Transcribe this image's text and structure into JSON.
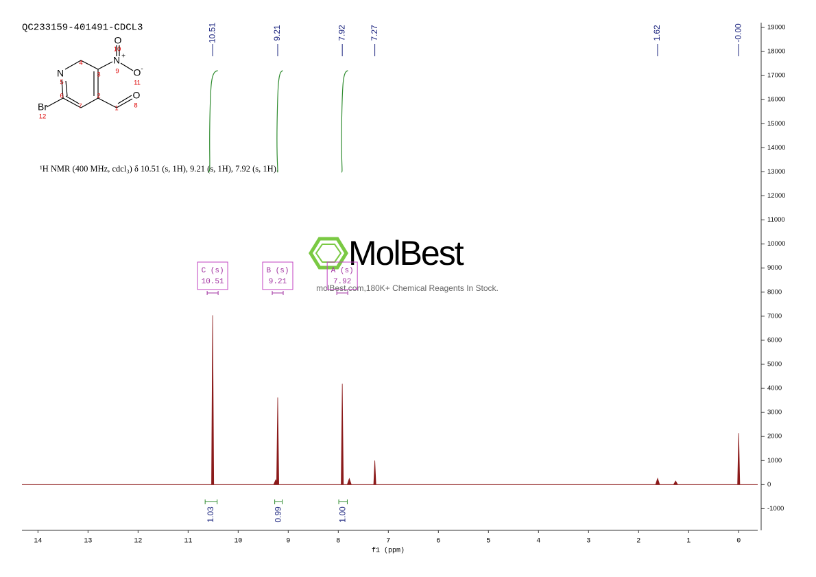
{
  "chart_data": {
    "type": "nmr",
    "title": "QC233159-401491-CDCL3",
    "description": "¹H NMR (400 MHz, cdcl₃) δ 10.51 (s, 1H), 9.21 (s, 1H), 7.92 (s, 1H).",
    "structure": {
      "atoms": [
        "N",
        "N",
        "O",
        "O",
        "O",
        "Br"
      ],
      "charges": [
        "+",
        "-"
      ],
      "numbers": [
        "1",
        "2",
        "3",
        "4",
        "5",
        "6",
        "7",
        "8",
        "9",
        "10",
        "11",
        "12"
      ]
    },
    "watermark": {
      "brand": "MolBest",
      "slogan": "molBest.com,180K+ Chemical Reagents In Stock."
    },
    "xlabel": "f1 (ppm)",
    "xlim": [
      14.32,
      -0.38
    ],
    "xticks": [
      14,
      13,
      12,
      11,
      10,
      9,
      8,
      7,
      6,
      5,
      4,
      3,
      2,
      1,
      0
    ],
    "ylim": [
      -1900,
      19200
    ],
    "yticks": [
      -1000,
      0,
      1000,
      2000,
      3000,
      4000,
      5000,
      6000,
      7000,
      8000,
      9000,
      10000,
      11000,
      12000,
      13000,
      14000,
      15000,
      16000,
      17000,
      18000,
      19000
    ],
    "color": "#8b1a1a",
    "peaks": {
      "x": [
        10.51,
        9.25,
        9.21,
        7.92,
        7.78,
        7.27,
        1.62,
        1.26,
        0.0
      ],
      "values": [
        7040,
        200,
        3620,
        4190,
        250,
        1000,
        260,
        150,
        2140
      ]
    },
    "peak_picks": [
      10.51,
      9.21,
      7.92,
      7.27,
      1.62,
      {
        "value": 0,
        "label": "-0.00"
      }
    ],
    "multiplets": [
      {
        "label": "C (s)",
        "shift": 10.51
      },
      {
        "label": "B (s)",
        "shift": 9.21
      },
      {
        "label": "A (s)",
        "shift": 7.92
      }
    ],
    "integrals": [
      {
        "from": 10.66,
        "to": 10.42,
        "value": 1.03
      },
      {
        "from": 9.27,
        "to": 9.12,
        "value": 0.99
      },
      {
        "from": 7.99,
        "to": 7.82,
        "value": {
          "value": 1,
          "label": "1.00"
        }
      }
    ]
  }
}
